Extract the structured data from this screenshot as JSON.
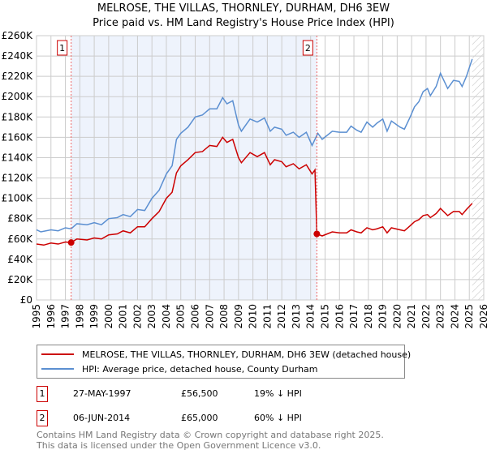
{
  "chart_data": {
    "type": "line",
    "title": "MELROSE, THE VILLAS, THORNLEY, DURHAM, DH6 3EW",
    "subtitle": "Price paid vs. HM Land Registry's House Price Index (HPI)",
    "xlim": [
      1995,
      2026
    ],
    "ylim": [
      0,
      260000
    ],
    "x_ticks": [
      "1995",
      "1996",
      "1997",
      "1998",
      "1999",
      "2000",
      "2001",
      "2002",
      "2003",
      "2004",
      "2005",
      "2006",
      "2007",
      "2008",
      "2009",
      "2010",
      "2011",
      "2012",
      "2013",
      "2014",
      "2015",
      "2016",
      "2017",
      "2018",
      "2019",
      "2020",
      "2021",
      "2022",
      "2023",
      "2024",
      "2025",
      "2026"
    ],
    "y_ticks": [
      {
        "v": 0,
        "l": "£0"
      },
      {
        "v": 20000,
        "l": "£20K"
      },
      {
        "v": 40000,
        "l": "£40K"
      },
      {
        "v": 60000,
        "l": "£60K"
      },
      {
        "v": 80000,
        "l": "£80K"
      },
      {
        "v": 100000,
        "l": "£100K"
      },
      {
        "v": 120000,
        "l": "£120K"
      },
      {
        "v": 140000,
        "l": "£140K"
      },
      {
        "v": 160000,
        "l": "£160K"
      },
      {
        "v": 180000,
        "l": "£180K"
      },
      {
        "v": 200000,
        "l": "£200K"
      },
      {
        "v": 220000,
        "l": "£220K"
      },
      {
        "v": 240000,
        "l": "£240K"
      },
      {
        "v": 260000,
        "l": "£260K"
      }
    ],
    "shaded_range": [
      1997.4,
      2014.43
    ],
    "hatched_from": 2025.2,
    "series": [
      {
        "name": "MELROSE, THE VILLAS, THORNLEY, DURHAM, DH6 3EW (detached house)",
        "color": "#cc0000",
        "x": [
          1995,
          1995.5,
          1996,
          1996.5,
          1997,
          1997.4,
          1997.8,
          1998.5,
          1999,
          1999.5,
          2000,
          2000.6,
          2001,
          2001.5,
          2002,
          2002.5,
          2003,
          2003.5,
          2004,
          2004.4,
          2004.7,
          2005,
          2005.5,
          2006,
          2006.5,
          2007,
          2007.5,
          2007.9,
          2008.2,
          2008.6,
          2009,
          2009.2,
          2009.8,
          2010.3,
          2010.8,
          2011.2,
          2011.5,
          2012,
          2012.3,
          2012.8,
          2013.2,
          2013.7,
          2014.1,
          2014.3,
          2014.43,
          2014.8,
          2015.5,
          2016,
          2016.5,
          2016.8,
          2017.2,
          2017.5,
          2017.9,
          2018.3,
          2018.6,
          2019,
          2019.3,
          2019.6,
          2020.2,
          2020.5,
          2020.9,
          2021.2,
          2021.5,
          2021.8,
          2022.1,
          2022.3,
          2022.7,
          2023,
          2023.5,
          2023.9,
          2024.3,
          2024.5,
          2024.8,
          2025.2
        ],
        "y": [
          55000,
          54000,
          56000,
          55000,
          57000,
          56500,
          60000,
          59000,
          61000,
          60000,
          64000,
          65000,
          68000,
          66000,
          72000,
          72000,
          80000,
          87000,
          100000,
          106000,
          125000,
          132000,
          138000,
          145000,
          146000,
          152000,
          151000,
          160000,
          155000,
          158000,
          140000,
          135000,
          145000,
          141000,
          145000,
          133000,
          138000,
          136000,
          131000,
          134000,
          129000,
          133000,
          124000,
          128000,
          65000,
          63000,
          67000,
          66000,
          66000,
          69000,
          67000,
          66000,
          71000,
          69000,
          70000,
          72000,
          66000,
          71000,
          69000,
          68000,
          73000,
          77000,
          79000,
          83000,
          84000,
          81000,
          85000,
          90000,
          83000,
          87000,
          87000,
          84000,
          89000,
          95000
        ]
      },
      {
        "name": "HPI: Average price, detached house, County Durham",
        "color": "#5b8fd1",
        "x": [
          1995,
          1995.3,
          1996,
          1996.5,
          1997,
          1997.4,
          1997.8,
          1998.5,
          1999,
          1999.5,
          2000,
          2000.6,
          2001,
          2001.5,
          2002,
          2002.5,
          2003,
          2003.5,
          2004,
          2004.4,
          2004.7,
          2005,
          2005.5,
          2006,
          2006.5,
          2007,
          2007.5,
          2007.9,
          2008.2,
          2008.6,
          2009,
          2009.2,
          2009.8,
          2010.3,
          2010.8,
          2011.2,
          2011.5,
          2012,
          2012.3,
          2012.8,
          2013.2,
          2013.7,
          2014.1,
          2014.5,
          2014.8,
          2015.5,
          2016,
          2016.5,
          2016.8,
          2017.2,
          2017.5,
          2017.9,
          2018.3,
          2018.6,
          2019,
          2019.3,
          2019.6,
          2020.2,
          2020.5,
          2020.9,
          2021.2,
          2021.5,
          2021.8,
          2022.1,
          2022.3,
          2022.7,
          2023,
          2023.5,
          2023.9,
          2024.3,
          2024.5,
          2024.8,
          2025.2
        ],
        "y": [
          69000,
          67000,
          69000,
          68000,
          71000,
          70000,
          75000,
          74000,
          76000,
          74000,
          80000,
          81000,
          84000,
          82000,
          89000,
          88000,
          100000,
          108000,
          124000,
          132000,
          158000,
          164000,
          170000,
          180000,
          182000,
          188000,
          188000,
          199000,
          193000,
          196000,
          172000,
          166000,
          178000,
          175000,
          179000,
          166000,
          170000,
          168000,
          162000,
          165000,
          160000,
          165000,
          152000,
          164000,
          158000,
          166000,
          165000,
          165000,
          171000,
          167000,
          165000,
          175000,
          170000,
          174000,
          178000,
          166000,
          176000,
          170000,
          168000,
          180000,
          190000,
          195000,
          205000,
          208000,
          201000,
          210000,
          223000,
          208000,
          216000,
          215000,
          210000,
          220000,
          237000
        ]
      }
    ],
    "markers": [
      {
        "label": "1",
        "x": 1997.4,
        "y": 56500
      },
      {
        "label": "2",
        "x": 2014.43,
        "y": 65000
      }
    ]
  },
  "legend": [
    "MELROSE, THE VILLAS, THORNLEY, DURHAM, DH6 3EW (detached house)",
    "HPI: Average price, detached house, County Durham"
  ],
  "sales": [
    {
      "num": "1",
      "date": "27-MAY-1997",
      "price": "£56,500",
      "hpi": "19% ↓ HPI"
    },
    {
      "num": "2",
      "date": "06-JUN-2014",
      "price": "£65,000",
      "hpi": "60% ↓ HPI"
    }
  ],
  "footer": [
    "Contains HM Land Registry data © Crown copyright and database right 2025.",
    "This data is licensed under the Open Government Licence v3.0."
  ]
}
